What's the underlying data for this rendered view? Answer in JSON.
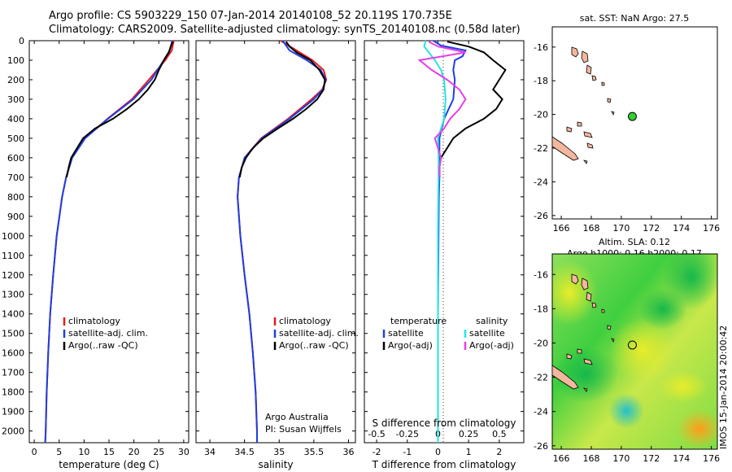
{
  "title_line1": "Argo profile: CS 5903229_150 07-Jan-2014 20140108_52 20.119S 170.735E",
  "title_line2": "Climatology: CARS2009. Satellite-adjusted climatology: synTS_20140108.nc (0.58d later)",
  "colors": {
    "climatology": "#e8191c",
    "satellite": "#1f3fe0",
    "argo": "#000000",
    "satellite_s": "#27e3e6",
    "argo_s": "#e63fe6",
    "land": "#f3b79e"
  },
  "chart_data": [
    {
      "type": "line",
      "xlabel": "temperature (deg C)",
      "ylabel": "",
      "xlim": [
        -1,
        31
      ],
      "ylim": [
        2060,
        0
      ],
      "xticks": [
        0,
        5,
        10,
        15,
        20,
        25,
        30
      ],
      "yticks": [
        0,
        100,
        200,
        300,
        400,
        500,
        600,
        700,
        800,
        900,
        1000,
        1100,
        1200,
        1300,
        1400,
        1500,
        1600,
        1700,
        1800,
        1900,
        2000
      ],
      "legend": [
        "climatology",
        "satellite-adj. clim.",
        "Argo(..raw -QC)"
      ],
      "legend_placement": "lower-center",
      "series": [
        {
          "name": "climatology",
          "color": "#e8191c",
          "depth": [
            0,
            50,
            100,
            200,
            300,
            400,
            500,
            600,
            700,
            800,
            1000,
            1200,
            1400,
            1600,
            1800,
            2000,
            2060
          ],
          "values": [
            28,
            27.6,
            26.3,
            23,
            19.6,
            14.7,
            10.2,
            7.6,
            6.4,
            5.6,
            4.5,
            3.8,
            3.2,
            2.8,
            2.5,
            2.3,
            2.2
          ]
        },
        {
          "name": "satellite-adj. clim.",
          "color": "#1f3fe0",
          "depth": [
            0,
            50,
            100,
            200,
            300,
            400,
            500,
            600,
            700,
            800,
            1000,
            1200,
            1400,
            1600,
            1800,
            2000,
            2060
          ],
          "values": [
            27.7,
            27.2,
            26,
            23.5,
            19.9,
            14.8,
            10.2,
            7.6,
            6.4,
            5.6,
            4.5,
            3.8,
            3.2,
            2.8,
            2.5,
            2.3,
            2.2
          ]
        },
        {
          "name": "Argo(..raw -QC)",
          "color": "#000000",
          "depth": [
            5,
            30,
            60,
            100,
            150,
            200,
            250,
            300,
            350,
            400,
            450,
            500,
            550,
            600,
            650,
            700
          ],
          "values": [
            27.8,
            27.4,
            27,
            26,
            25,
            24.2,
            22.8,
            21,
            18.6,
            15.8,
            12.2,
            9.8,
            8.6,
            7.4,
            6.9,
            6.5
          ]
        }
      ]
    },
    {
      "type": "line",
      "xlabel": "salinity",
      "ylabel": "",
      "xlim": [
        33.8,
        36.1
      ],
      "ylim": [
        2060,
        0
      ],
      "xticks": [
        34,
        34.5,
        35,
        35.5,
        36
      ],
      "legend": [
        "climatology",
        "satellite-adj. clim.",
        "Argo(..raw -QC)"
      ],
      "legend_placement": "lower-right",
      "annotation": [
        "Argo Australia",
        "PI: Susan Wijffels"
      ],
      "series": [
        {
          "name": "climatology",
          "color": "#e8191c",
          "depth": [
            0,
            50,
            100,
            150,
            200,
            250,
            300,
            400,
            500,
            600,
            700,
            800,
            1000,
            1200,
            1400,
            1600,
            1800,
            2000,
            2060
          ],
          "values": [
            35.02,
            35.25,
            35.48,
            35.64,
            35.68,
            35.62,
            35.47,
            35.13,
            34.74,
            34.5,
            34.42,
            34.4,
            34.44,
            34.5,
            34.57,
            34.62,
            34.66,
            34.68,
            34.68
          ]
        },
        {
          "name": "satellite-adj. clim.",
          "color": "#1f3fe0",
          "depth": [
            0,
            50,
            100,
            150,
            200,
            250,
            300,
            400,
            500,
            600,
            700,
            800,
            1000,
            1200,
            1400,
            1600,
            1800,
            2000,
            2060
          ],
          "values": [
            35.05,
            35.15,
            35.4,
            35.6,
            35.67,
            35.63,
            35.5,
            35.15,
            34.75,
            34.5,
            34.42,
            34.4,
            34.44,
            34.5,
            34.57,
            34.62,
            34.66,
            34.68,
            34.68
          ]
        },
        {
          "name": "Argo(..raw -QC)",
          "color": "#000000",
          "depth": [
            5,
            30,
            60,
            100,
            150,
            200,
            250,
            300,
            350,
            400,
            450,
            500,
            550,
            600,
            650,
            700
          ],
          "values": [
            35.1,
            35.15,
            35.25,
            35.45,
            35.58,
            35.66,
            35.64,
            35.55,
            35.39,
            35.2,
            34.98,
            34.77,
            34.62,
            34.52,
            34.46,
            34.43
          ]
        }
      ]
    },
    {
      "type": "line",
      "xlabel": "T difference from climatology",
      "top_axis_label": "S difference from climatology",
      "xlim": [
        -2.4,
        2.8
      ],
      "ylim": [
        2060,
        0
      ],
      "xticks": [
        -2,
        -1,
        0,
        1,
        2
      ],
      "top_ticks": [
        -0.5,
        -0.25,
        0,
        0.25,
        0.5
      ],
      "legend_headers": [
        "temperature",
        "salinity"
      ],
      "legend": [
        "satellite",
        "Argo(-adj)",
        "satellite",
        "Argo(-adj)"
      ],
      "series": [
        {
          "name": "satellite",
          "color": "#1f3fe0",
          "depth": [
            0,
            25,
            50,
            80,
            100,
            150,
            200,
            300,
            400,
            500,
            600,
            700,
            800,
            1000,
            1400,
            2060
          ],
          "values": [
            -0.15,
            0.1,
            0.9,
            0.8,
            0.55,
            0.5,
            0.55,
            0.5,
            0.2,
            0.05,
            0.05,
            0.05,
            0.03,
            0.02,
            0.0,
            0.0
          ]
        },
        {
          "name": "Argo(-adj)",
          "color": "#000000",
          "depth": [
            5,
            30,
            60,
            100,
            150,
            200,
            250,
            300,
            350,
            400,
            450,
            500,
            550,
            600,
            650,
            700
          ],
          "values": [
            0.3,
            1.0,
            1.5,
            1.8,
            2.2,
            2.0,
            1.8,
            2.1,
            1.9,
            1.5,
            0.9,
            0.5,
            0.3,
            0.1,
            0.05,
            0.05
          ]
        },
        {
          "name": "satellite",
          "color": "#27e3e6",
          "depth": [
            0,
            30,
            60,
            100,
            150,
            200,
            300,
            400,
            500,
            600,
            700,
            800,
            1000,
            1400,
            2060
          ],
          "values": [
            -0.4,
            -0.45,
            -0.3,
            -0.1,
            0.1,
            0.2,
            0.25,
            0.2,
            0.0,
            0.02,
            0.02,
            0.01,
            0.0,
            0.0,
            0.0
          ]
        },
        {
          "name": "Argo(-adj)",
          "color": "#e63fe6",
          "depth": [
            5,
            30,
            60,
            100,
            150,
            200,
            250,
            300,
            350,
            400,
            450,
            500,
            550,
            600,
            650,
            700
          ],
          "values": [
            -0.3,
            0.0,
            0.9,
            -0.6,
            -0.2,
            0.3,
            0.7,
            0.9,
            0.7,
            0.4,
            0.2,
            -0.1,
            0.0,
            0.1,
            0.05,
            0.05
          ]
        }
      ]
    },
    {
      "type": "scatter",
      "title": "sat. SST: NaN Argo: 27.5",
      "xlim": [
        165.4,
        176.4
      ],
      "ylim": [
        -26.2,
        -14.8
      ],
      "xticks": [
        166,
        168,
        170,
        172,
        174,
        176
      ],
      "yticks": [
        -16,
        -18,
        -20,
        -22,
        -24,
        -26
      ],
      "point": {
        "lon": 170.735,
        "lat": -20.119,
        "color": "#2fd12f"
      }
    },
    {
      "type": "heatmap",
      "title_line1": "Altim. SLA: 0.12",
      "title_line2": "Argo h1000: 0.16 h2000: 0.17",
      "xlim": [
        165.4,
        176.4
      ],
      "ylim": [
        -26.2,
        -14.8
      ],
      "xticks": [
        166,
        168,
        170,
        172,
        174,
        176
      ],
      "yticks": [
        -16,
        -18,
        -20,
        -22,
        -24,
        -26
      ],
      "point": {
        "lon": 170.735,
        "lat": -20.119
      }
    }
  ],
  "side_label": "IMOS 15-Jan-2014 20:00:42"
}
